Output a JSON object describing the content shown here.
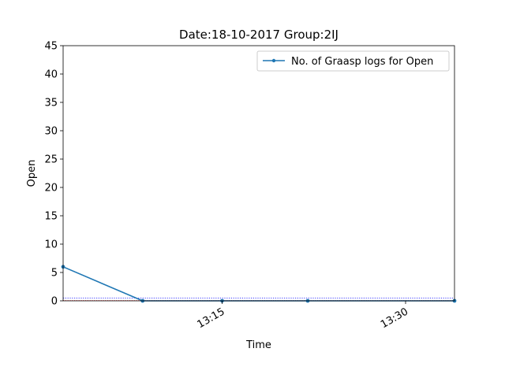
{
  "chart_data": {
    "type": "line",
    "title": "Date:18-10-2017  Group:2IJ",
    "xlabel": "Time",
    "ylabel": "Open",
    "ylim": [
      0,
      45
    ],
    "yticks": [
      0,
      5,
      10,
      15,
      20,
      25,
      30,
      35,
      40,
      45
    ],
    "xlim": [
      "13:02",
      "13:34"
    ],
    "xticks": [
      {
        "time": "13:15",
        "label": "13:15"
      },
      {
        "time": "13:30",
        "label": "13:30"
      }
    ],
    "series": [
      {
        "name": "No. of Graasp logs for Open",
        "color": "#1f77b4",
        "points": [
          {
            "x": "13:02",
            "y": 6
          },
          {
            "x": "13:08.5",
            "y": 0
          },
          {
            "x": "13:15",
            "y": 0
          },
          {
            "x": "13:22",
            "y": 0
          },
          {
            "x": "13:34",
            "y": 0
          }
        ]
      }
    ],
    "reference_lines": [
      {
        "y": 0.5,
        "color": "#0000ff",
        "style": "dotted"
      },
      {
        "y": 0.05,
        "color": "#ff0000",
        "style": "dotted"
      }
    ],
    "legend_position": "top-right",
    "grid": false
  }
}
